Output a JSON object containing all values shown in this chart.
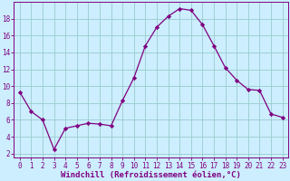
{
  "x": [
    0,
    1,
    2,
    3,
    4,
    5,
    6,
    7,
    8,
    9,
    10,
    11,
    12,
    13,
    14,
    15,
    16,
    17,
    18,
    19,
    20,
    21,
    22,
    23
  ],
  "y": [
    9.3,
    7.0,
    6.0,
    2.5,
    5.0,
    5.3,
    5.6,
    5.5,
    5.3,
    8.3,
    11.0,
    14.8,
    17.0,
    18.3,
    19.2,
    19.0,
    17.3,
    14.8,
    12.2,
    10.7,
    9.6,
    9.5,
    6.7,
    6.3
  ],
  "line_color": "#800080",
  "marker": "D",
  "marker_size": 2.2,
  "bg_color": "#cceeff",
  "grid_color": "#99cccc",
  "axis_color": "#800080",
  "tick_color": "#800080",
  "xlabel": "Windchill (Refroidissement éolien,°C)",
  "xlabel_fontsize": 6.5,
  "xlim": [
    -0.5,
    23.5
  ],
  "ylim": [
    1.5,
    20
  ],
  "yticks": [
    2,
    4,
    6,
    8,
    10,
    12,
    14,
    16,
    18
  ],
  "xticks": [
    0,
    1,
    2,
    3,
    4,
    5,
    6,
    7,
    8,
    9,
    10,
    11,
    12,
    13,
    14,
    15,
    16,
    17,
    18,
    19,
    20,
    21,
    22,
    23
  ],
  "tick_fontsize": 5.5,
  "linewidth": 0.9
}
